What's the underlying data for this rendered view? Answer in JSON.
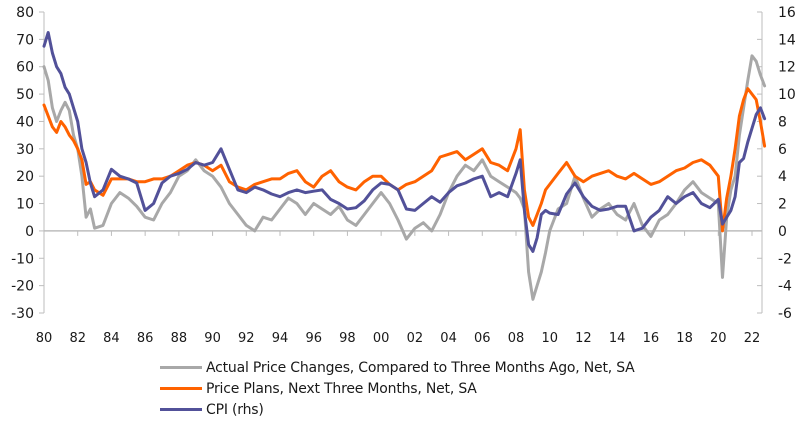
{
  "chart_data": {
    "type": "line",
    "title": "",
    "xlabel": "",
    "ylabel_left": "",
    "ylabel_right": "",
    "x_tick_labels": [
      "80",
      "82",
      "84",
      "86",
      "88",
      "90",
      "92",
      "94",
      "96",
      "98",
      "00",
      "02",
      "04",
      "06",
      "08",
      "10",
      "12",
      "14",
      "16",
      "18",
      "20",
      "22"
    ],
    "x_range": [
      1980,
      2022.75
    ],
    "left_axis": {
      "ylim": [
        -30,
        80
      ],
      "ticks": [
        80,
        70,
        60,
        50,
        40,
        30,
        20,
        10,
        0,
        -10,
        -20,
        -30
      ]
    },
    "right_axis": {
      "ylim": [
        -6,
        16
      ],
      "ticks": [
        16,
        14,
        12,
        10,
        8,
        6,
        4,
        2,
        0,
        -2,
        -4,
        -6
      ]
    },
    "grid": false,
    "zero_line": true,
    "legend_position": "bottom",
    "x": [
      1980,
      1980.25,
      1980.5,
      1980.75,
      1981,
      1981.25,
      1981.5,
      1981.75,
      1982,
      1982.25,
      1982.5,
      1982.75,
      1983,
      1983.5,
      1984,
      1984.5,
      1985,
      1985.5,
      1986,
      1986.5,
      1987,
      1987.5,
      1988,
      1988.5,
      1989,
      1989.5,
      1990,
      1990.5,
      1991,
      1991.5,
      1992,
      1992.5,
      1993,
      1993.5,
      1994,
      1994.5,
      1995,
      1995.5,
      1996,
      1996.5,
      1997,
      1997.5,
      1998,
      1998.5,
      1999,
      1999.5,
      2000,
      2000.5,
      2001,
      2001.5,
      2002,
      2002.5,
      2003,
      2003.5,
      2004,
      2004.5,
      2005,
      2005.5,
      2006,
      2006.5,
      2007,
      2007.5,
      2008,
      2008.25,
      2008.5,
      2008.75,
      2009,
      2009.25,
      2009.5,
      2009.75,
      2010,
      2010.5,
      2011,
      2011.5,
      2012,
      2012.5,
      2013,
      2013.5,
      2014,
      2014.5,
      2015,
      2015.5,
      2016,
      2016.5,
      2017,
      2017.5,
      2018,
      2018.5,
      2019,
      2019.5,
      2020,
      2020.25,
      2020.5,
      2020.75,
      2021,
      2021.25,
      2021.5,
      2021.75,
      2022,
      2022.25,
      2022.5,
      2022.75
    ],
    "series": [
      {
        "name": "Actual Price Changes, Compared to Three Months Ago, Net, SA",
        "axis": "left",
        "color": "#a8a8a8",
        "values": [
          60,
          55,
          45,
          40,
          44,
          47,
          44,
          35,
          30,
          20,
          5,
          8,
          1,
          2,
          10,
          14,
          12,
          9,
          5,
          4,
          10,
          14,
          20,
          22,
          26,
          22,
          20,
          16,
          10,
          6,
          2,
          0,
          5,
          4,
          8,
          12,
          10,
          6,
          10,
          8,
          6,
          9,
          4,
          2,
          6,
          10,
          14,
          10,
          4,
          -3,
          1,
          3,
          0,
          6,
          14,
          20,
          24,
          22,
          26,
          20,
          18,
          16,
          14,
          12,
          8,
          -15,
          -25,
          -20,
          -15,
          -8,
          0,
          8,
          10,
          20,
          12,
          5,
          8,
          10,
          6,
          4,
          10,
          2,
          -2,
          4,
          6,
          10,
          15,
          18,
          14,
          12,
          10,
          -17,
          5,
          15,
          20,
          35,
          45,
          55,
          64,
          62,
          57,
          53
        ]
      },
      {
        "name": "Price Plans, Next Three Months, Net, SA",
        "axis": "left",
        "color": "#ff6200",
        "values": [
          46,
          42,
          38,
          36,
          40,
          38,
          35,
          33,
          30,
          26,
          17,
          18,
          15,
          13,
          19,
          19,
          19,
          18,
          18,
          19,
          19,
          20,
          22,
          24,
          25,
          24,
          22,
          24,
          18,
          16,
          15,
          17,
          18,
          19,
          19,
          21,
          22,
          18,
          16,
          20,
          22,
          18,
          16,
          15,
          18,
          20,
          20,
          17,
          15,
          17,
          18,
          20,
          22,
          27,
          28,
          29,
          26,
          28,
          30,
          25,
          24,
          22,
          30,
          37,
          15,
          5,
          2,
          6,
          10,
          15,
          17,
          21,
          25,
          20,
          18,
          20,
          21,
          22,
          20,
          19,
          21,
          19,
          17,
          18,
          20,
          22,
          23,
          25,
          26,
          24,
          20,
          0,
          12,
          20,
          30,
          42,
          48,
          52,
          50,
          48,
          40,
          31
        ]
      },
      {
        "name": "CPI (rhs)",
        "axis": "right",
        "color": "#525199",
        "values": [
          13.5,
          14.5,
          13,
          12,
          11.5,
          10.5,
          10,
          9,
          8,
          6,
          5,
          3.5,
          2.5,
          3,
          4.5,
          4,
          3.8,
          3.5,
          1.5,
          2,
          3.5,
          4,
          4.2,
          4.5,
          5,
          4.8,
          5,
          6,
          4.5,
          3,
          2.8,
          3.2,
          3,
          2.7,
          2.5,
          2.8,
          3,
          2.8,
          2.9,
          3,
          2.3,
          2.0,
          1.6,
          1.7,
          2.2,
          3,
          3.5,
          3.4,
          3,
          1.6,
          1.5,
          2,
          2.5,
          2.1,
          2.8,
          3.3,
          3.5,
          3.8,
          4,
          2.5,
          2.8,
          2.5,
          4.2,
          5.2,
          1.5,
          -1,
          -1.5,
          -0.5,
          1.2,
          1.5,
          1.3,
          1.2,
          2.7,
          3.5,
          2.5,
          1.8,
          1.5,
          1.6,
          1.8,
          1.8,
          0,
          0.2,
          1,
          1.5,
          2.5,
          2,
          2.5,
          2.8,
          2,
          1.7,
          2.3,
          0.5,
          1,
          1.5,
          2.5,
          5,
          5.3,
          6.5,
          7.5,
          8.5,
          9.0,
          8.2
        ]
      }
    ]
  },
  "legend": {
    "items": [
      {
        "label": "Actual Price Changes, Compared to Three Months Ago, Net, SA",
        "color": "#a8a8a8"
      },
      {
        "label": "Price Plans, Next Three Months, Net, SA",
        "color": "#ff6200"
      },
      {
        "label": "CPI (rhs)",
        "color": "#525199"
      }
    ]
  }
}
